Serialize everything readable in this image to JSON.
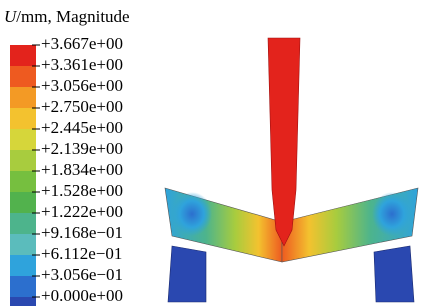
{
  "legend": {
    "variable": "U",
    "title": "/mm, Magnitude",
    "labels": [
      "+3.667e+00",
      "+3.361e+00",
      "+3.056e+00",
      "+2.750e+00",
      "+2.445e+00",
      "+2.139e+00",
      "+1.834e+00",
      "+1.528e+00",
      "+1.222e+00",
      "+9.168e−01",
      "+6.112e−01",
      "+3.056e−01",
      "+0.000e+00"
    ],
    "colors": [
      "#e3231c",
      "#ee5a20",
      "#f39a25",
      "#f3c22f",
      "#d6d63a",
      "#a8cc3e",
      "#76bf3f",
      "#52b24d",
      "#4db48c",
      "#5bbcbc",
      "#2fa3dc",
      "#2c6fce",
      "#2a48b0"
    ]
  }
}
